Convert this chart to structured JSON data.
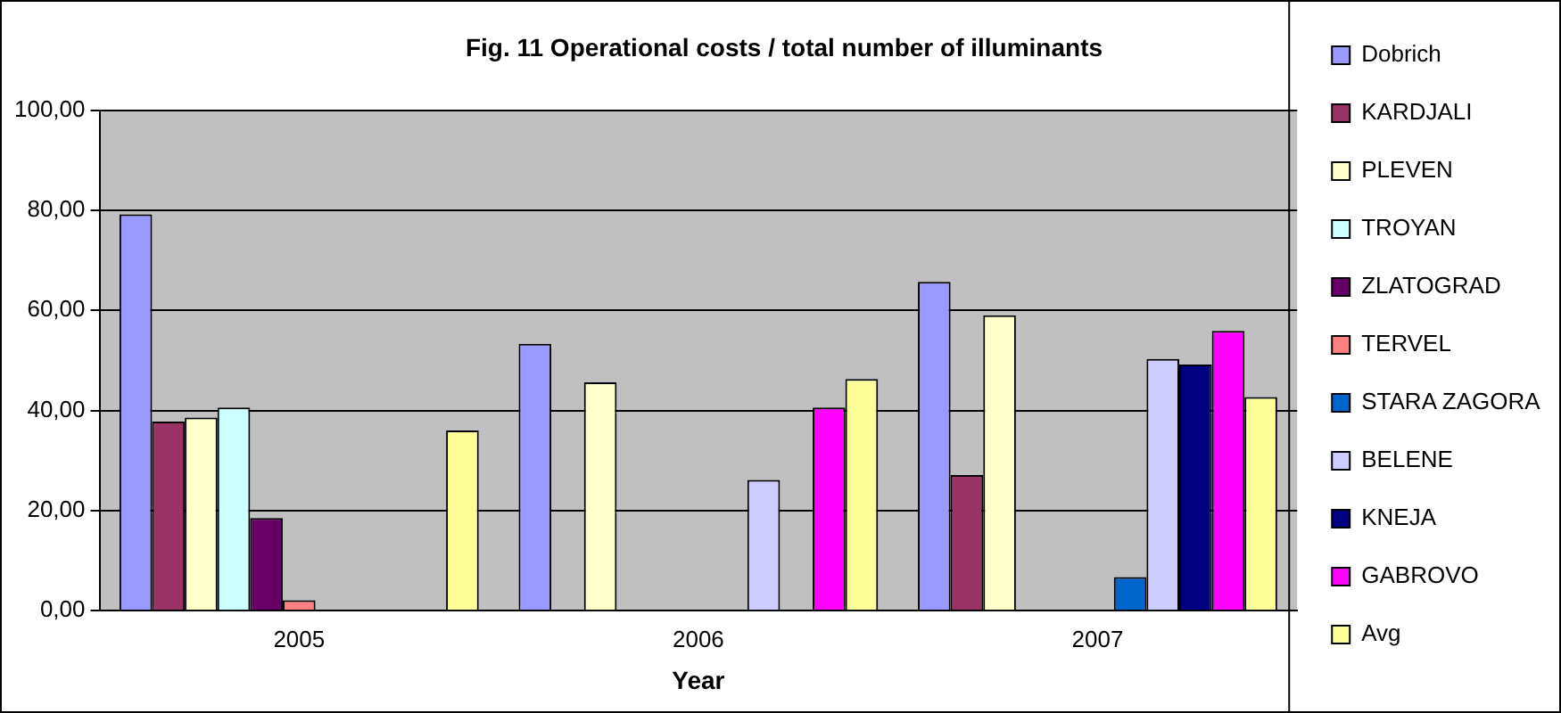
{
  "chart_data": {
    "type": "bar",
    "title": "Fig. 11 Operational costs / total number of illuminants",
    "xlabel": "Year",
    "categories": [
      "2005",
      "2006",
      "2007"
    ],
    "series": [
      {
        "name": "Dobrich",
        "color": "#9999ff",
        "values": [
          79.2,
          53.3,
          65.7
        ]
      },
      {
        "name": "KARDJALI",
        "color": "#993366",
        "values": [
          37.8,
          null,
          27.1
        ]
      },
      {
        "name": "PLEVEN",
        "color": "#ffffcc",
        "values": [
          38.6,
          45.6,
          59.0
        ]
      },
      {
        "name": "TROYAN",
        "color": "#ccffff",
        "values": [
          40.6,
          null,
          null
        ]
      },
      {
        "name": "ZLATOGRAD",
        "color": "#660066",
        "values": [
          18.5,
          null,
          null
        ]
      },
      {
        "name": "TERVEL",
        "color": "#ff8080",
        "values": [
          2.1,
          null,
          null
        ]
      },
      {
        "name": "STARA ZAGORA",
        "color": "#0066cc",
        "values": [
          null,
          null,
          6.7
        ]
      },
      {
        "name": "BELENE",
        "color": "#ccccff",
        "values": [
          null,
          26.1,
          50.3
        ]
      },
      {
        "name": "KNEJA",
        "color": "#000080",
        "values": [
          null,
          null,
          49.2
        ]
      },
      {
        "name": "GABROVO",
        "color": "#ff00ff",
        "values": [
          null,
          40.6,
          55.9
        ]
      },
      {
        "name": "Avg",
        "color": "#ffff99",
        "values": [
          36.0,
          46.3,
          42.7
        ]
      }
    ],
    "ylim": [
      0,
      100
    ],
    "yticks": [
      {
        "value": 0,
        "label": "0,00"
      },
      {
        "value": 20,
        "label": "20,00"
      },
      {
        "value": 40,
        "label": "40,00"
      },
      {
        "value": 60,
        "label": "60,00"
      },
      {
        "value": 80,
        "label": "80,00"
      },
      {
        "value": 100,
        "label": "100,00"
      }
    ],
    "grid": "y",
    "legend": "right"
  }
}
